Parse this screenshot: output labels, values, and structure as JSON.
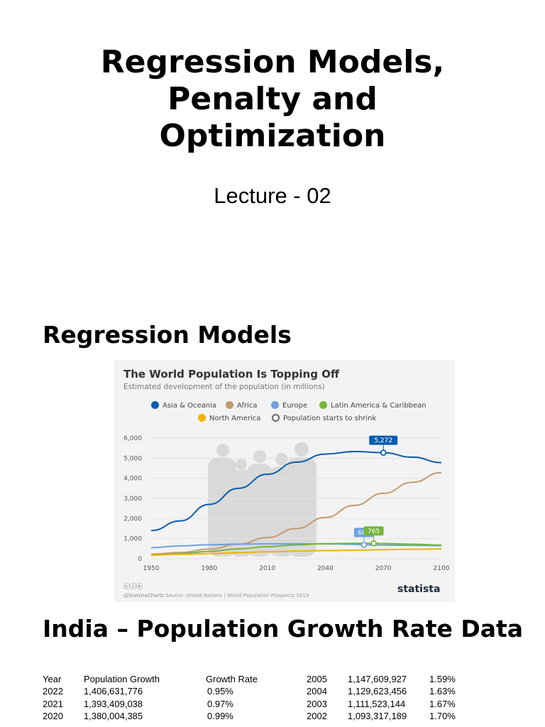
{
  "slide": {
    "title_lines": [
      "Regression Models,",
      "Penalty and",
      "Optimization"
    ],
    "subtitle": "Lecture - 02",
    "section1": "Regression Models",
    "section2": "India – Population Growth Rate Data"
  },
  "chart_data": {
    "type": "line",
    "title": "The World Population Is Topping Off",
    "subtitle": "Estimated development of the population (in millions)",
    "legend": [
      {
        "label": "Asia & Oceania",
        "color": "#0b5cad"
      },
      {
        "label": "Africa",
        "color": "#c49a6c"
      },
      {
        "label": "Europe",
        "color": "#6fa0dc"
      },
      {
        "label": "Latin America & Caribbean",
        "color": "#72b63a"
      },
      {
        "label": "North America",
        "color": "#f0b400"
      },
      {
        "label": "Population starts to shrink",
        "color": "#666666",
        "marker": "open-circle"
      }
    ],
    "x_ticks": [
      1950,
      1980,
      2010,
      2040,
      2070,
      2100
    ],
    "y_ticks": [
      "0",
      "1,000",
      "2,000",
      "3,000",
      "4,000",
      "5,000",
      "6,000"
    ],
    "xlim": [
      1950,
      2100
    ],
    "ylim": [
      0,
      6000
    ],
    "series": [
      {
        "name": "Asia & Oceania",
        "color": "#0b5cad",
        "x": [
          1950,
          1965,
          1980,
          1995,
          2010,
          2025,
          2040,
          2055,
          2070,
          2085,
          2100
        ],
        "y": [
          1400,
          1880,
          2700,
          3500,
          4200,
          4800,
          5200,
          5330,
          5272,
          5050,
          4780
        ]
      },
      {
        "name": "Africa",
        "color": "#c49a6c",
        "x": [
          1950,
          1965,
          1980,
          1995,
          2010,
          2025,
          2040,
          2055,
          2070,
          2085,
          2100
        ],
        "y": [
          230,
          310,
          480,
          720,
          1050,
          1500,
          2050,
          2650,
          3250,
          3800,
          4280
        ]
      },
      {
        "name": "Europe",
        "color": "#6fa0dc",
        "x": [
          1950,
          1965,
          1980,
          1995,
          2010,
          2025,
          2040,
          2055,
          2060,
          2070,
          2085,
          2100
        ],
        "y": [
          550,
          640,
          695,
          728,
          740,
          745,
          738,
          715,
          689,
          680,
          665,
          650
        ]
      },
      {
        "name": "Latin America & Caribbean",
        "color": "#72b63a",
        "x": [
          1950,
          1965,
          1980,
          1995,
          2010,
          2025,
          2040,
          2055,
          2065,
          2085,
          2100
        ],
        "y": [
          170,
          250,
          365,
          490,
          600,
          690,
          750,
          768,
          765,
          725,
          680
        ]
      },
      {
        "name": "North America",
        "color": "#f0b400",
        "x": [
          1950,
          1965,
          1980,
          1995,
          2010,
          2025,
          2040,
          2055,
          2070,
          2085,
          2100
        ],
        "y": [
          175,
          220,
          255,
          300,
          345,
          380,
          405,
          425,
          445,
          470,
          490
        ]
      }
    ],
    "annotations": [
      {
        "label": "5,272",
        "x": 2070,
        "y": 5272,
        "color": "#0b5cad"
      },
      {
        "label": "689",
        "x": 2060,
        "y": 689,
        "color": "#6fa0dc"
      },
      {
        "label": "765",
        "x": 2065,
        "y": 765,
        "color": "#72b63a"
      }
    ],
    "footer": "@StatistaCharts",
    "source": "Source: United Nations | World Population Prospects 2019",
    "brand": "statista"
  },
  "table": {
    "left_header": [
      "Year",
      "Population Growth",
      "Growth Rate"
    ],
    "left_rows": [
      [
        "2022",
        "1,406,631,776",
        "0.95%"
      ],
      [
        "2021",
        "1,393,409,038",
        "0.97%"
      ],
      [
        "2020",
        "1,380,004,385",
        "0.99%"
      ]
    ],
    "right_rows": [
      [
        "2005",
        "1,147,609,927",
        "1.59%"
      ],
      [
        "2004",
        "1,129,623,456",
        "1.63%"
      ],
      [
        "2003",
        "1,111,523,144",
        "1.67%"
      ],
      [
        "2002",
        "1,093,317,189",
        "1.70%"
      ]
    ]
  }
}
